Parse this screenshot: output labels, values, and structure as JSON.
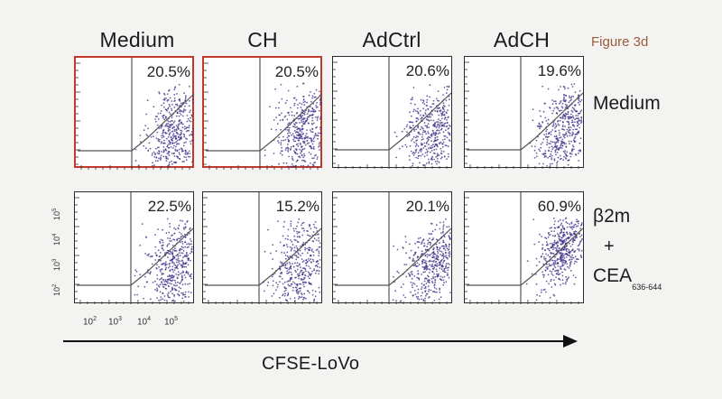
{
  "figure": {
    "label": "Figure 3d",
    "columns": [
      "Medium",
      "CH",
      "AdCtrl",
      "AdCH"
    ],
    "rows": [
      {
        "label_main": "Medium",
        "label_plus": "",
        "label_sub_main": "",
        "label_sub": ""
      },
      {
        "label_main": "β2m",
        "label_plus": "+",
        "label_sub_main": "CEA",
        "label_sub": "636-644"
      }
    ],
    "panels": [
      [
        {
          "percent": "20.5%",
          "highlighted": true
        },
        {
          "percent": "20.5%",
          "highlighted": true
        },
        {
          "percent": "20.6%",
          "highlighted": false
        },
        {
          "percent": "19.6%",
          "highlighted": false
        }
      ],
      [
        {
          "percent": "22.5%",
          "highlighted": false
        },
        {
          "percent": "15.2%",
          "highlighted": false
        },
        {
          "percent": "20.1%",
          "highlighted": false
        },
        {
          "percent": "60.9%",
          "highlighted": false
        }
      ]
    ],
    "x_ticks": [
      "10",
      "10",
      "10",
      "10"
    ],
    "x_tick_exponents": [
      "2",
      "3",
      "4",
      "5"
    ],
    "y_ticks": [
      "10",
      "10",
      "10",
      "10"
    ],
    "y_tick_exponents": [
      "2",
      "3",
      "4",
      "5"
    ],
    "x_axis_title": "CFSE-LoVo",
    "colors": {
      "dots": "#3a2a86",
      "highlight": "#c0392b",
      "gate": "#555555"
    }
  }
}
